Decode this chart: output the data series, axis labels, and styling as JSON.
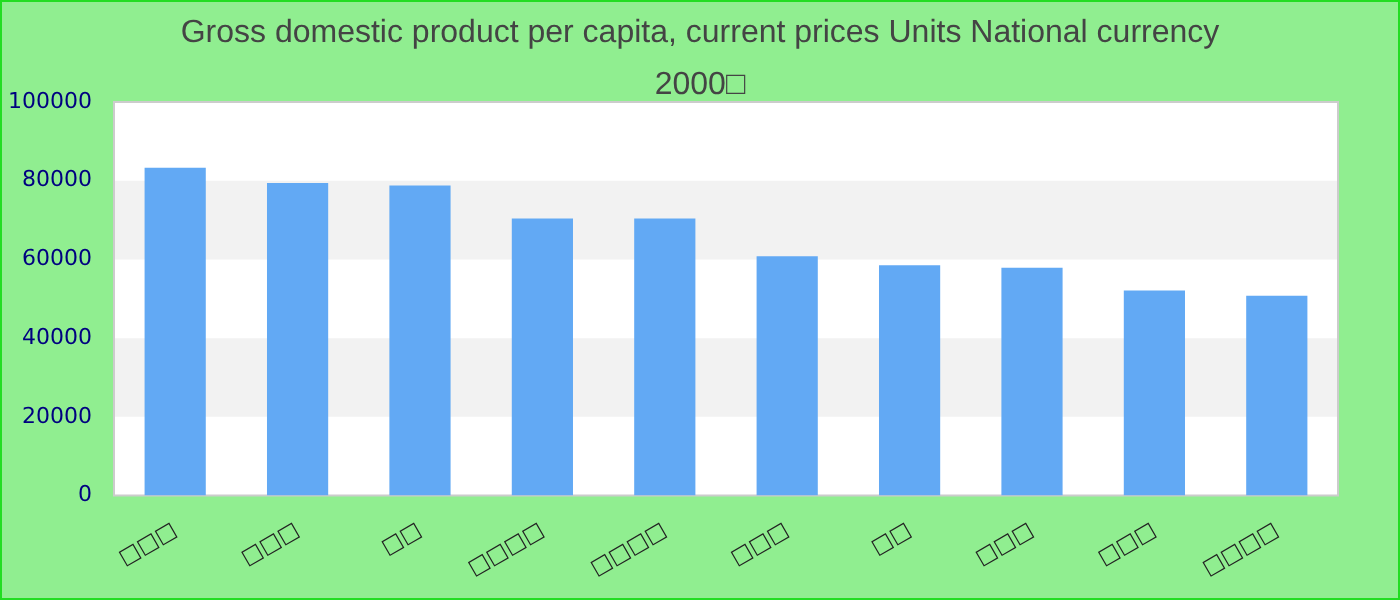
{
  "chart_data": {
    "type": "bar",
    "title": "Gross domestic product per capita, current prices Units National currency",
    "subtitle": "2000□",
    "categories": [
      "□□□",
      "□□□",
      "□□",
      "□□□□",
      "□□□□",
      "□□□",
      "□□",
      "□□□",
      "□□□",
      "□□□□"
    ],
    "values": [
      83300,
      79400,
      78800,
      70400,
      70400,
      60800,
      58500,
      57900,
      52100,
      50800
    ],
    "color": "#62a9f4",
    "ylim": [
      0,
      100000
    ],
    "yticks": [
      0,
      20000,
      40000,
      60000,
      80000,
      100000
    ],
    "bands": [
      {
        "axis": "y",
        "from": 20000,
        "to": 40000,
        "color": "#f2f2f2"
      },
      {
        "axis": "y",
        "from": 60000,
        "to": 80000,
        "color": "#f2f2f2"
      }
    ],
    "legend": false
  }
}
